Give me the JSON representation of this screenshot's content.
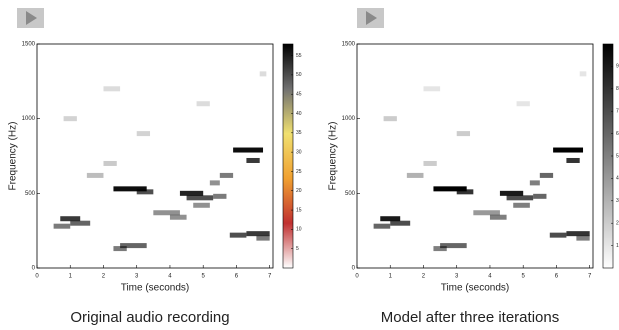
{
  "chart_data": [
    {
      "type": "spectrogram",
      "caption": "Original audio recording",
      "xlabel": "Time (seconds)",
      "ylabel": "Frequency (Hz)",
      "xlim": [
        0,
        7.1
      ],
      "ylim": [
        0,
        1500
      ],
      "xticks": [
        0,
        1,
        2,
        3,
        4,
        5,
        6,
        7
      ],
      "yticks": [
        0,
        500,
        1000,
        1500
      ],
      "zlim": [
        0,
        58
      ],
      "zticks": [
        5,
        10,
        15,
        20,
        25,
        30,
        35,
        40,
        45,
        50,
        55
      ],
      "colormap": [
        "#ffffff",
        "#c03030",
        "#f0a030",
        "#f0e070",
        "#707070",
        "#000000"
      ],
      "segments": [
        [
          0.7,
          1.3,
          330,
          45
        ],
        [
          1.0,
          1.6,
          300,
          35
        ],
        [
          0.5,
          1.0,
          280,
          30
        ],
        [
          2.3,
          3.3,
          530,
          55
        ],
        [
          3.0,
          3.5,
          510,
          40
        ],
        [
          4.3,
          5.0,
          500,
          50
        ],
        [
          4.5,
          5.3,
          470,
          40
        ],
        [
          5.3,
          5.7,
          480,
          30
        ],
        [
          5.9,
          6.8,
          790,
          55
        ],
        [
          6.3,
          6.7,
          720,
          45
        ],
        [
          5.8,
          6.3,
          220,
          40
        ],
        [
          6.3,
          7.0,
          230,
          45
        ],
        [
          6.6,
          7.0,
          200,
          30
        ],
        [
          2.5,
          3.3,
          150,
          35
        ],
        [
          2.3,
          2.7,
          130,
          30
        ],
        [
          4.0,
          4.5,
          340,
          25
        ],
        [
          3.5,
          4.3,
          370,
          25
        ],
        [
          4.7,
          5.2,
          420,
          25
        ],
        [
          5.5,
          5.9,
          620,
          30
        ],
        [
          5.2,
          5.5,
          570,
          25
        ],
        [
          1.5,
          2.0,
          620,
          15
        ],
        [
          2.0,
          2.4,
          700,
          12
        ],
        [
          3.0,
          3.4,
          900,
          10
        ],
        [
          0.8,
          1.2,
          1000,
          10
        ],
        [
          4.8,
          5.2,
          1100,
          8
        ],
        [
          6.7,
          6.9,
          1300,
          8
        ],
        [
          2.0,
          2.5,
          1200,
          8
        ]
      ]
    },
    {
      "type": "spectrogram",
      "caption": "Model after three iterations",
      "xlabel": "Time (seconds)",
      "ylabel": "Frequency (Hz)",
      "xlim": [
        0,
        7.1
      ],
      "ylim": [
        0,
        1500
      ],
      "xticks": [
        0,
        1,
        2,
        3,
        4,
        5,
        6,
        7
      ],
      "yticks": [
        0,
        500,
        1000,
        1500
      ],
      "zlim": [
        0,
        10
      ],
      "zticks": [
        1,
        2,
        3,
        4,
        5,
        6,
        7,
        8,
        9
      ],
      "colormap": [
        "#ffffff",
        "#000000"
      ],
      "segments": [
        [
          0.7,
          1.3,
          330,
          9
        ],
        [
          1.0,
          1.6,
          300,
          7
        ],
        [
          0.5,
          1.0,
          280,
          6
        ],
        [
          2.3,
          3.3,
          530,
          10
        ],
        [
          3.0,
          3.5,
          510,
          8
        ],
        [
          4.3,
          5.0,
          500,
          9
        ],
        [
          4.5,
          5.3,
          470,
          7
        ],
        [
          5.3,
          5.7,
          480,
          6
        ],
        [
          5.9,
          6.8,
          790,
          10
        ],
        [
          6.3,
          6.7,
          720,
          8
        ],
        [
          5.8,
          6.3,
          220,
          7
        ],
        [
          6.3,
          7.0,
          230,
          8
        ],
        [
          6.6,
          7.0,
          200,
          5
        ],
        [
          2.5,
          3.3,
          150,
          6
        ],
        [
          2.3,
          2.7,
          130,
          5
        ],
        [
          4.0,
          4.5,
          340,
          5
        ],
        [
          3.5,
          4.3,
          370,
          4
        ],
        [
          4.7,
          5.2,
          420,
          5
        ],
        [
          5.5,
          5.9,
          620,
          6
        ],
        [
          5.2,
          5.5,
          570,
          5
        ],
        [
          1.5,
          2.0,
          620,
          3
        ],
        [
          2.0,
          2.4,
          700,
          2
        ],
        [
          3.0,
          3.4,
          900,
          2
        ],
        [
          0.8,
          1.2,
          1000,
          2
        ],
        [
          4.8,
          5.2,
          1100,
          1
        ],
        [
          6.7,
          6.9,
          1300,
          1
        ],
        [
          2.0,
          2.5,
          1200,
          1
        ]
      ]
    }
  ]
}
